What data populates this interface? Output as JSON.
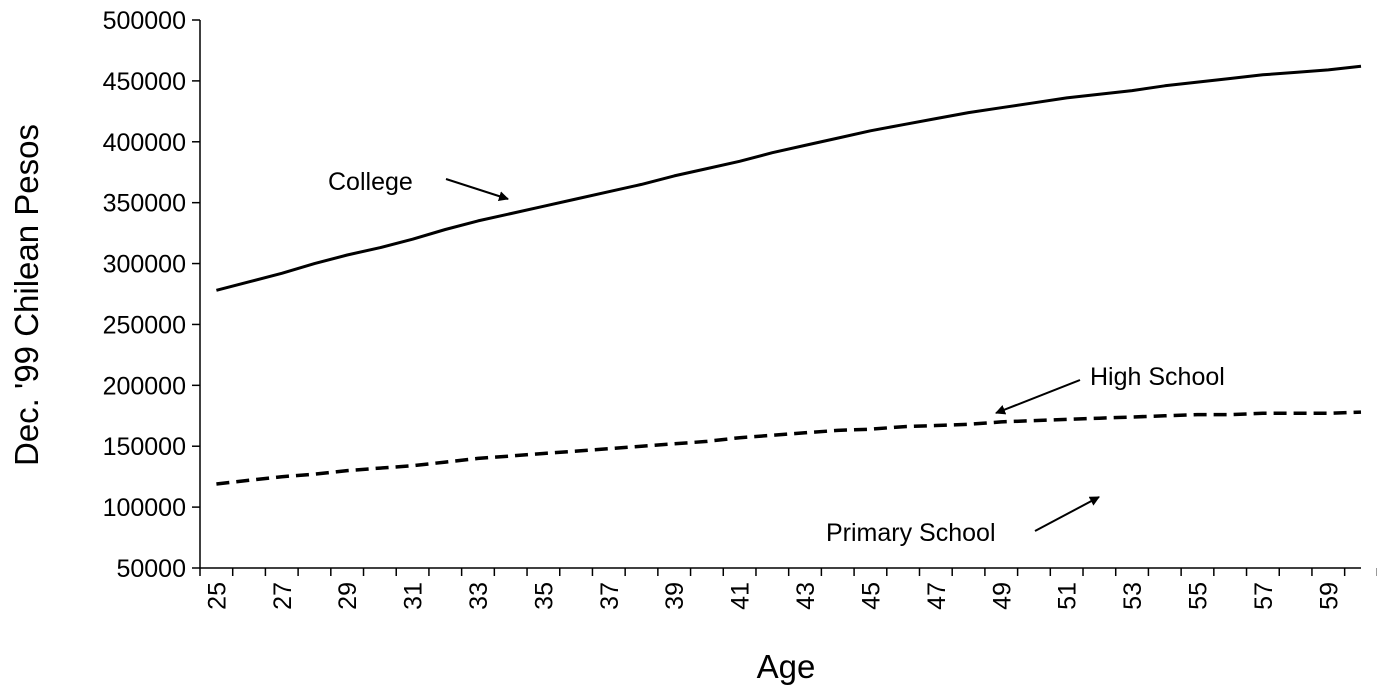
{
  "chart_data": {
    "type": "line",
    "xlabel": "Age",
    "ylabel": "Dec. '99 Chilean Pesos",
    "ylim": [
      50000,
      500000
    ],
    "xlim": [
      25,
      60
    ],
    "x_tick_labels": [
      "25",
      "27",
      "29",
      "31",
      "33",
      "35",
      "37",
      "39",
      "41",
      "43",
      "45",
      "47",
      "49",
      "51",
      "53",
      "55",
      "57",
      "59"
    ],
    "y_tick_labels": [
      "50000",
      "100000",
      "150000",
      "200000",
      "250000",
      "300000",
      "350000",
      "400000",
      "450000",
      "500000"
    ],
    "grid": false,
    "legend": "none",
    "x": [
      25,
      26,
      27,
      28,
      29,
      30,
      31,
      32,
      33,
      34,
      35,
      36,
      37,
      38,
      39,
      40,
      41,
      42,
      43,
      44,
      45,
      46,
      47,
      48,
      49,
      50,
      51,
      52,
      53,
      54,
      55,
      56,
      57,
      58,
      59,
      60
    ],
    "series": [
      {
        "name": "College",
        "style": "solid",
        "values": [
          278000,
          285000,
          292000,
          300000,
          307000,
          313000,
          320000,
          328000,
          335000,
          341000,
          347000,
          353000,
          359000,
          365000,
          372000,
          378000,
          384000,
          391000,
          397000,
          403000,
          409000,
          414000,
          419000,
          424000,
          428000,
          432000,
          436000,
          439000,
          442000,
          446000,
          449000,
          452000,
          455000,
          457000,
          459000,
          462000
        ]
      },
      {
        "name": "High School",
        "style": "dashed",
        "values": [
          119000,
          122000,
          125000,
          127000,
          130000,
          132000,
          134000,
          137000,
          140000,
          142000,
          144000,
          146000,
          148000,
          150000,
          152000,
          154000,
          157000,
          159000,
          161000,
          163000,
          164000,
          166000,
          167000,
          168000,
          170000,
          171000,
          172000,
          173000,
          174000,
          175000,
          176000,
          176000,
          177000,
          177000,
          177000,
          178000
        ]
      }
    ],
    "annotations": [
      {
        "text": "College",
        "points_to": "College"
      },
      {
        "text": "High School",
        "points_to": "High School"
      },
      {
        "text": "Primary School",
        "points_to": ""
      }
    ]
  }
}
